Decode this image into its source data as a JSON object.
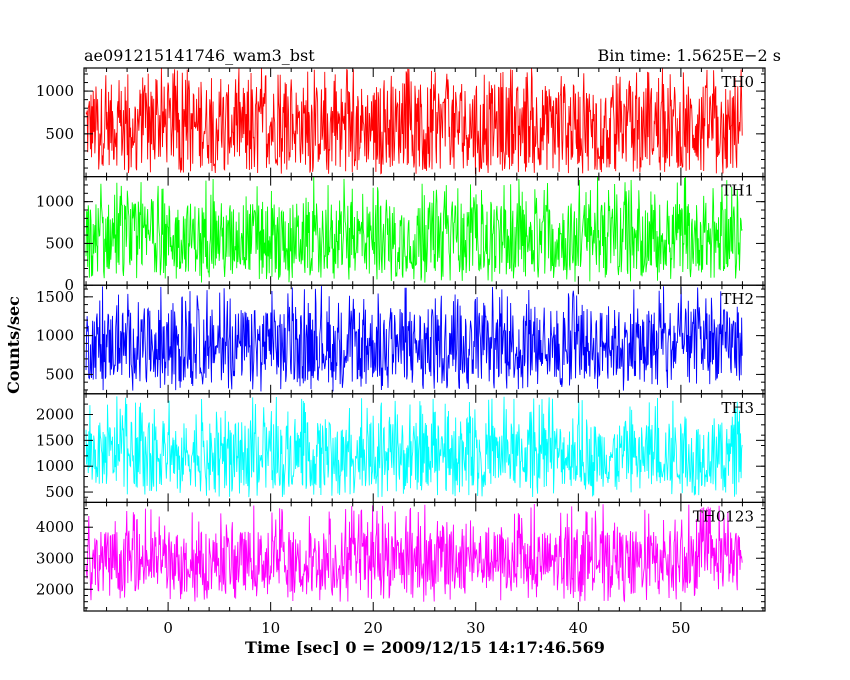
{
  "header": {
    "title": "ae091215141746_wam3_bst",
    "bin_time": "Bin time: 1.5625E−2 s"
  },
  "chart_data": {
    "type": "line",
    "title": "ae091215141746_wam3_bst",
    "xlabel": "Time [sec] 0 = 2009/12/15 14:17:46.569",
    "ylabel": "Counts/sec",
    "xlim": [
      -8.2,
      58.2
    ],
    "x_data_range": [
      -8.0,
      56.0
    ],
    "x_ticks": [
      0,
      10,
      20,
      30,
      40,
      50
    ],
    "panels": [
      {
        "name": "TH0",
        "color": "#ff0000",
        "ylim": [
          0,
          1270
        ],
        "y_ticks": [
          500,
          1000
        ],
        "typical_range": [
          120,
          1080
        ],
        "mean": 600,
        "min": 30,
        "max": 1270
      },
      {
        "name": "TH1",
        "color": "#00ff00",
        "ylim": [
          0,
          1300
        ],
        "y_ticks": [
          0,
          500,
          1000
        ],
        "typical_range": [
          150,
          1000
        ],
        "mean": 580,
        "min": 30,
        "max": 1300
      },
      {
        "name": "TH2",
        "color": "#0000ff",
        "ylim": [
          250,
          1650
        ],
        "y_ticks": [
          500,
          1000,
          1500
        ],
        "typical_range": [
          420,
          1350
        ],
        "mean": 860,
        "min": 280,
        "max": 1650
      },
      {
        "name": "TH3",
        "color": "#00ffff",
        "ylim": [
          300,
          2400
        ],
        "y_ticks": [
          500,
          1000,
          1500,
          2000
        ],
        "typical_range": [
          600,
          1850
        ],
        "mean": 1300,
        "min": 400,
        "max": 2350
      },
      {
        "name": "TH0123",
        "color": "#ff00ff",
        "ylim": [
          1300,
          4800
        ],
        "y_ticks": [
          2000,
          3000,
          4000
        ],
        "typical_range": [
          1950,
          3900
        ],
        "mean": 2950,
        "min": 1600,
        "max": 4750
      }
    ]
  }
}
